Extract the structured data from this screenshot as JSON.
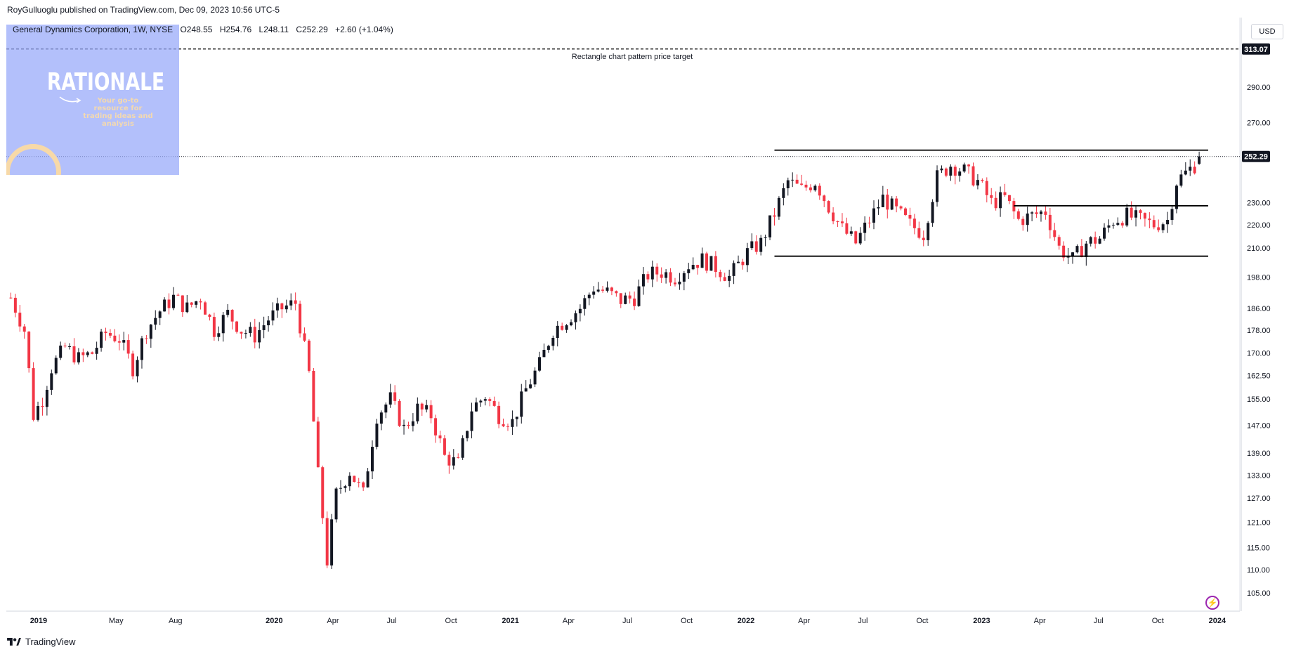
{
  "attribution": {
    "author": "RoyGulluoglu",
    "text": "published on TradingView.com,",
    "date": "Dec 09, 2023 10:56 UTC-5"
  },
  "legend": {
    "symbol": "General Dynamics Corporation, 1W, NYSE",
    "open": "O248.55",
    "high": "H254.76",
    "low": "L248.11",
    "close": "C252.29",
    "change": "+2.60 (+1.04%)"
  },
  "currency_label": "USD",
  "watermark": {
    "title": "RATIONALE",
    "subtitle": "Your go-to resource for trading ideas and analysis"
  },
  "footer": {
    "brand": "TradingView"
  },
  "colors": {
    "up": "#131722",
    "down": "#f23645",
    "line": "#000000",
    "accent": "#9c27b0"
  },
  "chart_data": {
    "type": "candlestick",
    "timeframe": "1W",
    "scale": "log",
    "ylim": [
      100,
      320
    ],
    "y_ticks": [
      105,
      110,
      115,
      121,
      127,
      133,
      139,
      147,
      155,
      162.5,
      170,
      178,
      186,
      198,
      210,
      220,
      230,
      250,
      270,
      290,
      313
    ],
    "y_tick_labels": [
      "105.00",
      "110.00",
      "115.00",
      "121.00",
      "127.00",
      "133.00",
      "139.00",
      "147.00",
      "155.00",
      "162.50",
      "170.00",
      "178.00",
      "186.00",
      "198.00",
      "210.00",
      "220.00",
      "230.00",
      "",
      "270.00",
      "290.00",
      ""
    ],
    "x_ticks": [
      {
        "label": "2019",
        "date": "2019-01-01"
      },
      {
        "label": "May",
        "date": "2019-05-01"
      },
      {
        "label": "Aug",
        "date": "2019-08-01"
      },
      {
        "label": "2020",
        "date": "2020-01-01"
      },
      {
        "label": "Apr",
        "date": "2020-04-01"
      },
      {
        "label": "Jul",
        "date": "2020-07-01"
      },
      {
        "label": "Oct",
        "date": "2020-10-01"
      },
      {
        "label": "2021",
        "date": "2021-01-01"
      },
      {
        "label": "Apr",
        "date": "2021-04-01"
      },
      {
        "label": "Jul",
        "date": "2021-07-01"
      },
      {
        "label": "Oct",
        "date": "2021-10-01"
      },
      {
        "label": "2022",
        "date": "2022-01-01"
      },
      {
        "label": "Apr",
        "date": "2022-04-01"
      },
      {
        "label": "Jul",
        "date": "2022-07-01"
      },
      {
        "label": "Oct",
        "date": "2022-10-01"
      },
      {
        "label": "2023",
        "date": "2023-01-01"
      },
      {
        "label": "Apr",
        "date": "2023-04-01"
      },
      {
        "label": "Jul",
        "date": "2023-07-01"
      },
      {
        "label": "Oct",
        "date": "2023-10-01"
      },
      {
        "label": "2024",
        "date": "2024-01-01"
      }
    ],
    "weekly_close_path": [
      [
        "2018-11-19",
        190
      ],
      [
        "2018-12-10",
        178
      ],
      [
        "2018-12-24",
        150
      ],
      [
        "2019-01-07",
        155
      ],
      [
        "2019-01-21",
        165
      ],
      [
        "2019-02-11",
        172
      ],
      [
        "2019-03-04",
        168
      ],
      [
        "2019-03-25",
        170
      ],
      [
        "2019-04-15",
        177
      ],
      [
        "2019-05-06",
        175
      ],
      [
        "2019-05-27",
        165
      ],
      [
        "2019-06-17",
        178
      ],
      [
        "2019-07-08",
        185
      ],
      [
        "2019-07-29",
        190
      ],
      [
        "2019-08-19",
        186
      ],
      [
        "2019-09-09",
        190
      ],
      [
        "2019-09-30",
        178
      ],
      [
        "2019-10-21",
        184
      ],
      [
        "2019-11-11",
        178
      ],
      [
        "2019-12-02",
        176
      ],
      [
        "2019-12-23",
        182
      ],
      [
        "2020-01-13",
        186
      ],
      [
        "2020-02-03",
        188
      ],
      [
        "2020-02-24",
        163
      ],
      [
        "2020-03-09",
        133
      ],
      [
        "2020-03-23",
        112
      ],
      [
        "2020-04-06",
        128
      ],
      [
        "2020-04-27",
        134
      ],
      [
        "2020-05-18",
        128
      ],
      [
        "2020-06-08",
        150
      ],
      [
        "2020-06-29",
        155
      ],
      [
        "2020-07-20",
        146
      ],
      [
        "2020-08-10",
        152
      ],
      [
        "2020-08-31",
        150
      ],
      [
        "2020-09-21",
        138
      ],
      [
        "2020-10-12",
        136
      ],
      [
        "2020-11-02",
        152
      ],
      [
        "2020-11-23",
        156
      ],
      [
        "2020-12-14",
        150
      ],
      [
        "2021-01-04",
        148
      ],
      [
        "2021-01-25",
        158
      ],
      [
        "2021-02-15",
        166
      ],
      [
        "2021-03-08",
        178
      ],
      [
        "2021-03-29",
        182
      ],
      [
        "2021-04-19",
        186
      ],
      [
        "2021-05-10",
        194
      ],
      [
        "2021-05-31",
        192
      ],
      [
        "2021-06-21",
        189
      ],
      [
        "2021-07-12",
        190
      ],
      [
        "2021-08-02",
        199
      ],
      [
        "2021-08-23",
        200
      ],
      [
        "2021-09-13",
        198
      ],
      [
        "2021-10-04",
        203
      ],
      [
        "2021-10-25",
        205
      ],
      [
        "2021-11-15",
        202
      ],
      [
        "2021-12-06",
        198
      ],
      [
        "2022-01-03",
        208
      ],
      [
        "2022-01-24",
        212
      ],
      [
        "2022-02-14",
        225
      ],
      [
        "2022-03-07",
        240
      ],
      [
        "2022-03-28",
        236
      ],
      [
        "2022-04-18",
        240
      ],
      [
        "2022-05-09",
        228
      ],
      [
        "2022-05-30",
        218
      ],
      [
        "2022-06-20",
        212
      ],
      [
        "2022-07-11",
        222
      ],
      [
        "2022-08-01",
        232
      ],
      [
        "2022-08-22",
        226
      ],
      [
        "2022-09-12",
        220
      ],
      [
        "2022-10-03",
        216
      ],
      [
        "2022-10-24",
        242
      ],
      [
        "2022-11-14",
        248
      ],
      [
        "2022-12-05",
        245
      ],
      [
        "2022-12-26",
        240
      ],
      [
        "2023-01-16",
        230
      ],
      [
        "2023-02-06",
        232
      ],
      [
        "2023-02-27",
        222
      ],
      [
        "2023-03-20",
        224
      ],
      [
        "2023-04-10",
        226
      ],
      [
        "2023-05-01",
        210
      ],
      [
        "2023-05-22",
        205
      ],
      [
        "2023-06-12",
        212
      ],
      [
        "2023-07-03",
        214
      ],
      [
        "2023-07-24",
        222
      ],
      [
        "2023-08-14",
        224
      ],
      [
        "2023-09-04",
        222
      ],
      [
        "2023-09-25",
        220
      ],
      [
        "2023-10-16",
        222
      ],
      [
        "2023-10-30",
        240
      ],
      [
        "2023-11-13",
        244
      ],
      [
        "2023-11-27",
        248
      ],
      [
        "2023-12-04",
        252.29
      ]
    ],
    "annotations": {
      "target_line": {
        "value": 313.07,
        "label": "Rectangle chart pattern price target"
      },
      "resistance": {
        "value": 255.5,
        "from": "2022-02-14",
        "to": "2023-12-18"
      },
      "mid_support": {
        "value": 228.5,
        "from": "2023-02-20",
        "to": "2023-12-18"
      },
      "support": {
        "value": 206.5,
        "from": "2022-02-14",
        "to": "2023-12-18"
      }
    },
    "last_price": {
      "value": 252.29,
      "label": "252.29"
    },
    "target_price_label": "313.07"
  }
}
